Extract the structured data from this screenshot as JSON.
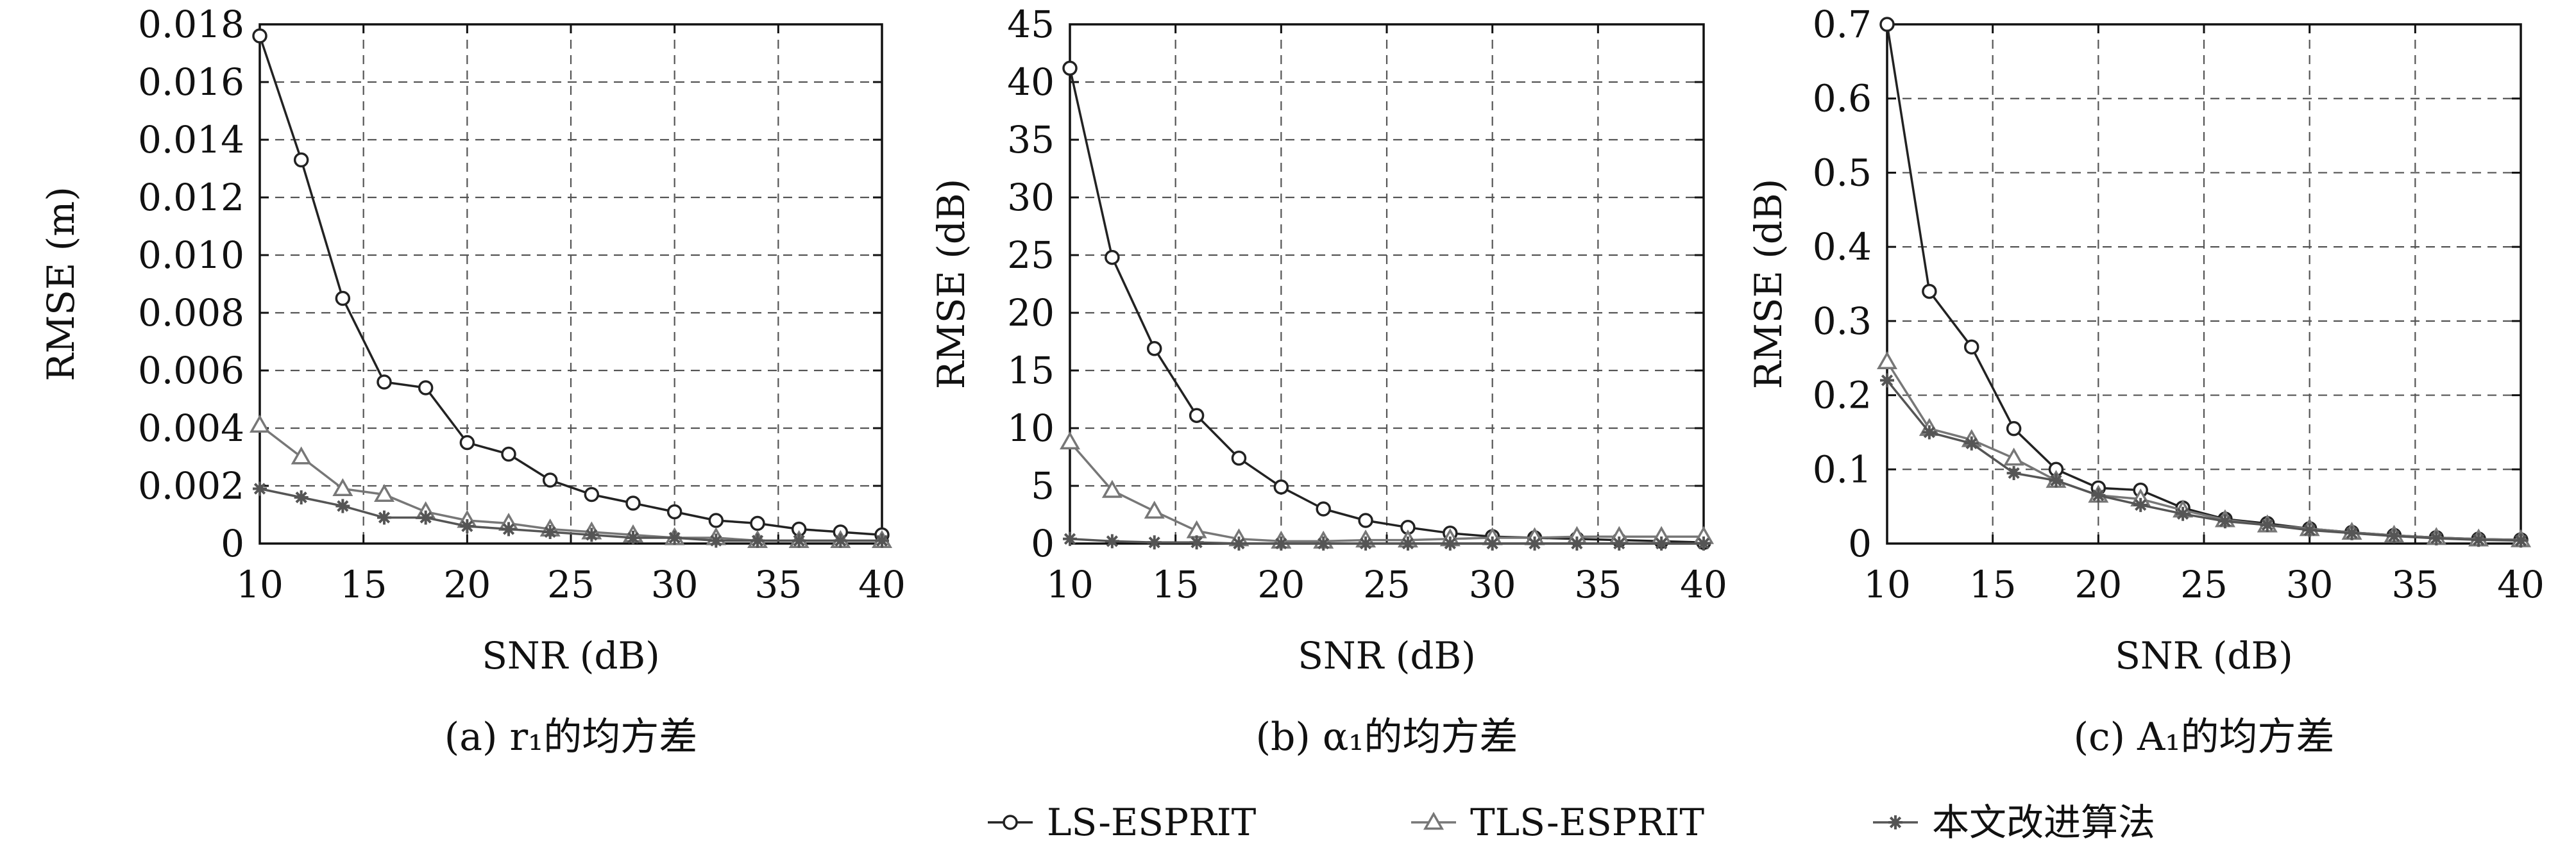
{
  "chart_data": [
    {
      "type": "line",
      "caption": "(a) r₁的均方差",
      "xlabel": "SNR (dB)",
      "ylabel": "RMSE (m)",
      "xlim": [
        10,
        40
      ],
      "ylim": [
        0,
        0.018
      ],
      "xticks": [
        10,
        15,
        20,
        25,
        30,
        35,
        40
      ],
      "yticks": [
        0,
        0.002,
        0.004,
        0.006,
        0.008,
        0.01,
        0.012,
        0.014,
        0.016,
        0.018
      ],
      "ytick_labels": [
        "0",
        "0.002",
        "0.004",
        "0.006",
        "0.008",
        "0.010",
        "0.012",
        "0.014",
        "0.016",
        "0.018"
      ],
      "grid": true,
      "x": [
        10,
        12,
        14,
        16,
        18,
        20,
        22,
        24,
        26,
        28,
        30,
        32,
        34,
        36,
        38,
        40
      ],
      "series": [
        {
          "name": "LS-ESPRIT",
          "marker": "circle",
          "color": "#222222",
          "values": [
            0.0176,
            0.0133,
            0.0085,
            0.0056,
            0.0054,
            0.0035,
            0.0031,
            0.0022,
            0.0017,
            0.0014,
            0.0011,
            0.0008,
            0.0007,
            0.0005,
            0.0004,
            0.0003
          ]
        },
        {
          "name": "TLS-ESPRIT",
          "marker": "triangle",
          "color": "#777777",
          "values": [
            0.0041,
            0.003,
            0.0019,
            0.0017,
            0.0011,
            0.0008,
            0.0007,
            0.0005,
            0.0004,
            0.0003,
            0.0002,
            0.0002,
            0.0001,
            0.0001,
            0.0001,
            0.0001
          ]
        },
        {
          "name": "本文改进算法",
          "marker": "star",
          "color": "#555555",
          "values": [
            0.0019,
            0.0016,
            0.0013,
            0.0009,
            0.0009,
            0.0006,
            0.0005,
            0.0004,
            0.0003,
            0.0002,
            0.0002,
            0.0001,
            0.0001,
            0.0001,
            0.0001,
            0.0001
          ]
        }
      ]
    },
    {
      "type": "line",
      "caption": "(b) α₁的均方差",
      "xlabel": "SNR (dB)",
      "ylabel": "RMSE (dB)",
      "xlim": [
        10,
        40
      ],
      "ylim": [
        0,
        45
      ],
      "xticks": [
        10,
        15,
        20,
        25,
        30,
        35,
        40
      ],
      "yticks": [
        0,
        5,
        10,
        15,
        20,
        25,
        30,
        35,
        40,
        45
      ],
      "ytick_labels": [
        "0",
        "5",
        "10",
        "15",
        "20",
        "25",
        "30",
        "35",
        "40",
        "45"
      ],
      "grid": true,
      "x": [
        10,
        12,
        14,
        16,
        18,
        20,
        22,
        24,
        26,
        28,
        30,
        32,
        34,
        36,
        38,
        40
      ],
      "series": [
        {
          "name": "LS-ESPRIT",
          "marker": "circle",
          "color": "#222222",
          "values": [
            41.2,
            24.8,
            16.9,
            11.1,
            7.4,
            4.9,
            3.0,
            2.0,
            1.4,
            0.9,
            0.6,
            0.5,
            0.4,
            0.3,
            0.2,
            0.1
          ]
        },
        {
          "name": "TLS-ESPRIT",
          "marker": "triangle",
          "color": "#777777",
          "values": [
            8.8,
            4.6,
            2.8,
            1.1,
            0.4,
            0.2,
            0.2,
            0.3,
            0.3,
            0.4,
            0.5,
            0.5,
            0.6,
            0.6,
            0.6,
            0.6
          ]
        },
        {
          "name": "本文改进算法",
          "marker": "star",
          "color": "#555555",
          "values": [
            0.4,
            0.2,
            0.1,
            0.1,
            0.0,
            0.0,
            0.0,
            0.0,
            0.0,
            0.0,
            0.0,
            0.0,
            0.0,
            0.0,
            0.0,
            0.0
          ]
        }
      ]
    },
    {
      "type": "line",
      "caption": "(c) A₁的均方差",
      "xlabel": "SNR (dB)",
      "ylabel": "RMSE (dB)",
      "xlim": [
        10,
        40
      ],
      "ylim": [
        0,
        0.7
      ],
      "xticks": [
        10,
        15,
        20,
        25,
        30,
        35,
        40
      ],
      "yticks": [
        0,
        0.1,
        0.2,
        0.3,
        0.4,
        0.5,
        0.6,
        0.7
      ],
      "ytick_labels": [
        "0",
        "0.1",
        "0.2",
        "0.3",
        "0.4",
        "0.5",
        "0.6",
        "0.7"
      ],
      "grid": true,
      "x": [
        10,
        12,
        14,
        16,
        18,
        20,
        22,
        24,
        26,
        28,
        30,
        32,
        34,
        36,
        38,
        40
      ],
      "series": [
        {
          "name": "LS-ESPRIT",
          "marker": "circle",
          "color": "#222222",
          "values": [
            0.7,
            0.34,
            0.265,
            0.155,
            0.1,
            0.075,
            0.072,
            0.048,
            0.033,
            0.027,
            0.02,
            0.015,
            0.011,
            0.008,
            0.006,
            0.005
          ]
        },
        {
          "name": "TLS-ESPRIT",
          "marker": "triangle",
          "color": "#777777",
          "values": [
            0.245,
            0.155,
            0.14,
            0.115,
            0.085,
            0.065,
            0.06,
            0.045,
            0.032,
            0.025,
            0.02,
            0.015,
            0.011,
            0.008,
            0.006,
            0.005
          ]
        },
        {
          "name": "本文改进算法",
          "marker": "star",
          "color": "#555555",
          "values": [
            0.22,
            0.15,
            0.135,
            0.095,
            0.085,
            0.065,
            0.052,
            0.04,
            0.03,
            0.025,
            0.018,
            0.014,
            0.01,
            0.007,
            0.005,
            0.004
          ]
        }
      ]
    }
  ],
  "legend": {
    "placement": "bottom-center",
    "items": [
      {
        "label": "LS-ESPRIT",
        "marker": "circle",
        "color": "#222222"
      },
      {
        "label": "TLS-ESPRIT",
        "marker": "triangle",
        "color": "#777777"
      },
      {
        "label": "本文改进算法",
        "marker": "star",
        "color": "#555555"
      }
    ]
  }
}
